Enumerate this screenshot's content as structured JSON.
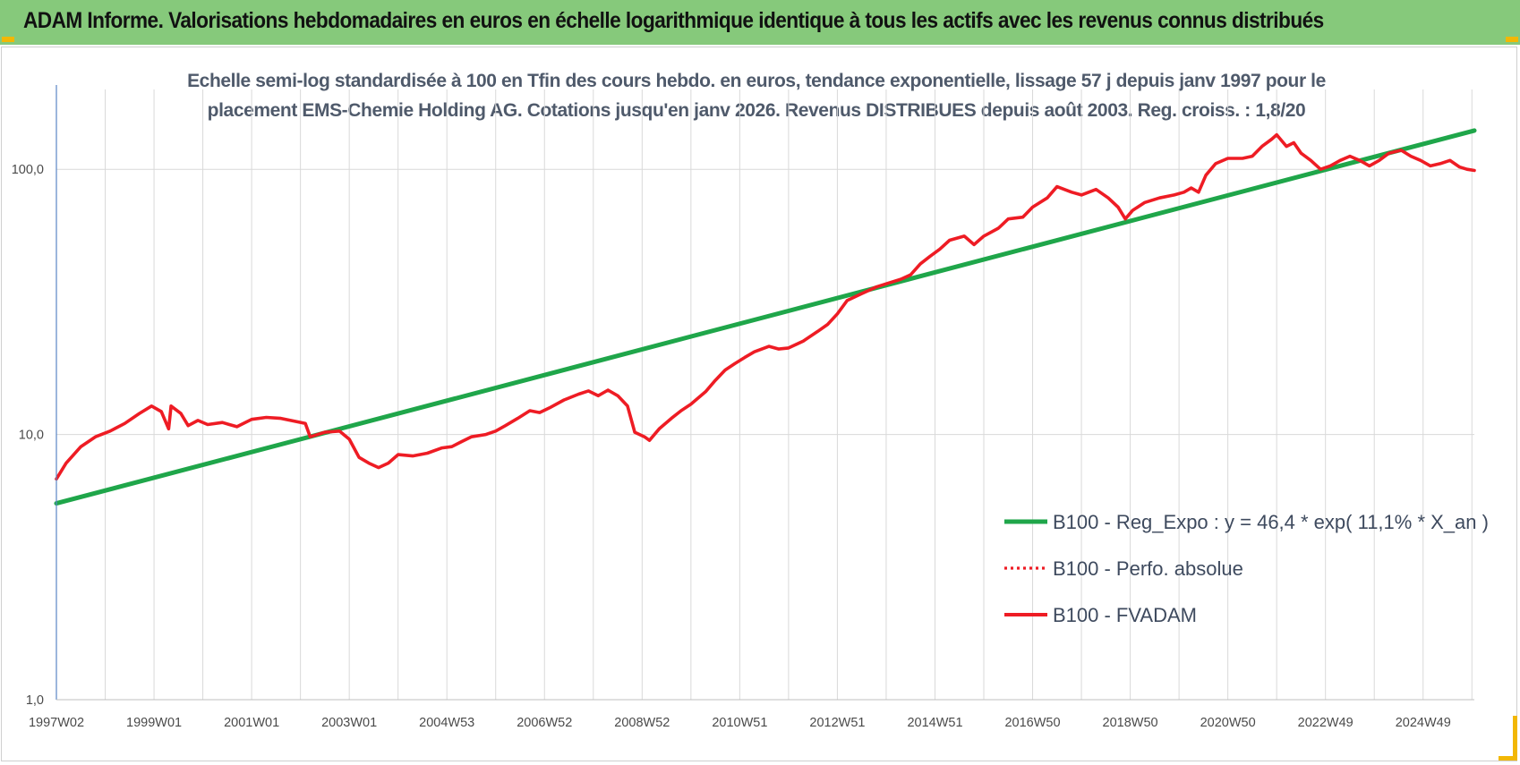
{
  "banner": {
    "title": "ADAM Informe. Valorisations hebdomadaires en euros en échelle logarithmique identique à tous les actifs avec les revenus connus distribués",
    "color": "#86c97b"
  },
  "chart_data": {
    "type": "line",
    "title_lines": [
      "Echelle semi-log standardisée à 100 en Tfin des cours hebdo. en euros, tendance exponentielle, lissage 57 j depuis janv 1997 pour le",
      "placement EMS-Chemie Holding AG. Cotations jusqu'en janv 2026. Revenus DISTRIBUES depuis août 2003. Reg. croiss. : 1,8/20"
    ],
    "y_scale": "log",
    "ylim": [
      1,
      200
    ],
    "y_ticks": [
      {
        "value": 1,
        "label": "1,0"
      },
      {
        "value": 10,
        "label": "10,0"
      },
      {
        "value": 100,
        "label": "100,0"
      }
    ],
    "x_range": [
      1997.0,
      2026.05
    ],
    "x_ticks": [
      {
        "value": 1997.0,
        "label": "1997W02"
      },
      {
        "value": 1999.0,
        "label": "1999W01"
      },
      {
        "value": 2001.0,
        "label": "2001W01"
      },
      {
        "value": 2003.0,
        "label": "2003W01"
      },
      {
        "value": 2005.0,
        "label": "2004W53"
      },
      {
        "value": 2007.0,
        "label": "2006W52"
      },
      {
        "value": 2009.0,
        "label": "2008W52"
      },
      {
        "value": 2011.0,
        "label": "2010W51"
      },
      {
        "value": 2013.0,
        "label": "2012W51"
      },
      {
        "value": 2015.0,
        "label": "2014W51"
      },
      {
        "value": 2017.0,
        "label": "2016W50"
      },
      {
        "value": 2019.0,
        "label": "2018W50"
      },
      {
        "value": 2021.0,
        "label": "2020W50"
      },
      {
        "value": 2023.0,
        "label": "2022W49"
      },
      {
        "value": 2025.0,
        "label": "2024W49"
      }
    ],
    "grid": true,
    "legend_position": "bottom-right",
    "series": [
      {
        "name": "B100 - Reg_Expo : y = 46,4 * exp( 11,1% *  X_an )",
        "color": "#1fa64a",
        "style": "solid",
        "points": [
          [
            1997.0,
            5.5
          ],
          [
            2026.05,
            140.0
          ]
        ]
      },
      {
        "name": "B100 - Perfo. absolue",
        "color": "#ee1c24",
        "style": "dotted",
        "points": []
      },
      {
        "name": "B100 - FVADAM",
        "color": "#ee1c24",
        "style": "solid",
        "points": [
          [
            1997.0,
            6.8
          ],
          [
            1997.2,
            7.8
          ],
          [
            1997.5,
            9.0
          ],
          [
            1997.8,
            9.8
          ],
          [
            1998.1,
            10.3
          ],
          [
            1998.4,
            11.0
          ],
          [
            1998.7,
            12.0
          ],
          [
            1998.95,
            12.8
          ],
          [
            1999.15,
            12.2
          ],
          [
            1999.3,
            10.5
          ],
          [
            1999.35,
            12.8
          ],
          [
            1999.55,
            12.0
          ],
          [
            1999.7,
            10.8
          ],
          [
            1999.9,
            11.3
          ],
          [
            2000.1,
            10.9
          ],
          [
            2000.4,
            11.1
          ],
          [
            2000.7,
            10.7
          ],
          [
            2001.0,
            11.4
          ],
          [
            2001.3,
            11.6
          ],
          [
            2001.6,
            11.5
          ],
          [
            2001.9,
            11.2
          ],
          [
            2002.1,
            11.0
          ],
          [
            2002.2,
            9.8
          ],
          [
            2002.5,
            10.2
          ],
          [
            2002.8,
            10.3
          ],
          [
            2003.0,
            9.6
          ],
          [
            2003.2,
            8.2
          ],
          [
            2003.4,
            7.8
          ],
          [
            2003.6,
            7.5
          ],
          [
            2003.8,
            7.8
          ],
          [
            2004.0,
            8.4
          ],
          [
            2004.3,
            8.3
          ],
          [
            2004.6,
            8.5
          ],
          [
            2004.9,
            8.9
          ],
          [
            2005.1,
            9.0
          ],
          [
            2005.3,
            9.4
          ],
          [
            2005.5,
            9.8
          ],
          [
            2005.8,
            10.0
          ],
          [
            2006.0,
            10.3
          ],
          [
            2006.2,
            10.8
          ],
          [
            2006.45,
            11.5
          ],
          [
            2006.7,
            12.3
          ],
          [
            2006.9,
            12.1
          ],
          [
            2007.1,
            12.6
          ],
          [
            2007.4,
            13.5
          ],
          [
            2007.7,
            14.2
          ],
          [
            2007.9,
            14.6
          ],
          [
            2008.1,
            14.0
          ],
          [
            2008.3,
            14.7
          ],
          [
            2008.5,
            14.0
          ],
          [
            2008.7,
            12.8
          ],
          [
            2008.85,
            10.2
          ],
          [
            2009.05,
            9.8
          ],
          [
            2009.15,
            9.5
          ],
          [
            2009.35,
            10.5
          ],
          [
            2009.6,
            11.5
          ],
          [
            2009.8,
            12.3
          ],
          [
            2010.0,
            13.0
          ],
          [
            2010.3,
            14.5
          ],
          [
            2010.5,
            16.0
          ],
          [
            2010.7,
            17.5
          ],
          [
            2010.9,
            18.5
          ],
          [
            2011.1,
            19.5
          ],
          [
            2011.3,
            20.5
          ],
          [
            2011.6,
            21.5
          ],
          [
            2011.8,
            21.0
          ],
          [
            2012.0,
            21.2
          ],
          [
            2012.3,
            22.5
          ],
          [
            2012.6,
            24.5
          ],
          [
            2012.8,
            26.0
          ],
          [
            2013.0,
            28.5
          ],
          [
            2013.2,
            32.0
          ],
          [
            2013.5,
            34.0
          ],
          [
            2013.8,
            36.0
          ],
          [
            2014.0,
            37.0
          ],
          [
            2014.3,
            38.5
          ],
          [
            2014.5,
            40.0
          ],
          [
            2014.7,
            44.0
          ],
          [
            2014.9,
            47.0
          ],
          [
            2015.1,
            50.0
          ],
          [
            2015.3,
            54.0
          ],
          [
            2015.6,
            56.0
          ],
          [
            2015.8,
            52.0
          ],
          [
            2016.0,
            56.0
          ],
          [
            2016.3,
            60.0
          ],
          [
            2016.5,
            65.0
          ],
          [
            2016.8,
            66.0
          ],
          [
            2017.0,
            72.0
          ],
          [
            2017.3,
            78.0
          ],
          [
            2017.5,
            86.0
          ],
          [
            2017.8,
            82.0
          ],
          [
            2018.0,
            80.0
          ],
          [
            2018.3,
            84.0
          ],
          [
            2018.55,
            78.0
          ],
          [
            2018.75,
            72.0
          ],
          [
            2018.9,
            65.0
          ],
          [
            2019.05,
            70.0
          ],
          [
            2019.3,
            75.0
          ],
          [
            2019.6,
            78.0
          ],
          [
            2019.9,
            80.0
          ],
          [
            2020.1,
            82.0
          ],
          [
            2020.25,
            85.0
          ],
          [
            2020.4,
            82.0
          ],
          [
            2020.55,
            95.0
          ],
          [
            2020.75,
            105.0
          ],
          [
            2021.0,
            110.0
          ],
          [
            2021.3,
            110.0
          ],
          [
            2021.5,
            112.0
          ],
          [
            2021.7,
            122.0
          ],
          [
            2021.9,
            130.0
          ],
          [
            2022.0,
            135.0
          ],
          [
            2022.2,
            122.0
          ],
          [
            2022.35,
            126.0
          ],
          [
            2022.5,
            115.0
          ],
          [
            2022.7,
            108.0
          ],
          [
            2022.9,
            100.0
          ],
          [
            2023.1,
            103.0
          ],
          [
            2023.3,
            108.0
          ],
          [
            2023.5,
            112.0
          ],
          [
            2023.7,
            108.0
          ],
          [
            2023.9,
            103.0
          ],
          [
            2024.1,
            108.0
          ],
          [
            2024.3,
            115.0
          ],
          [
            2024.55,
            118.0
          ],
          [
            2024.75,
            112.0
          ],
          [
            2024.95,
            108.0
          ],
          [
            2025.15,
            103.0
          ],
          [
            2025.35,
            105.0
          ],
          [
            2025.55,
            108.0
          ],
          [
            2025.75,
            102.0
          ],
          [
            2025.9,
            100.0
          ],
          [
            2026.05,
            99.0
          ]
        ]
      }
    ]
  }
}
